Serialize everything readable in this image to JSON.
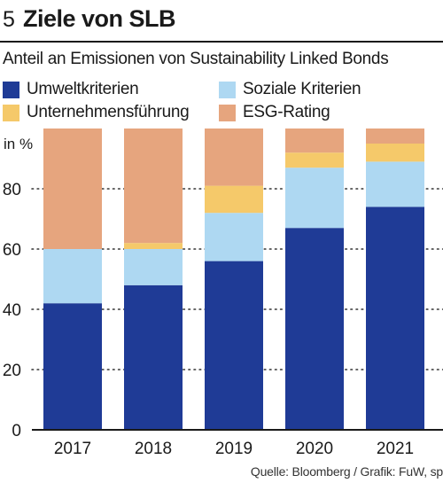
{
  "header": {
    "number": "5",
    "title": "Ziele von SLB"
  },
  "subtitle": "Anteil an Emissionen von Sustainability Linked Bonds",
  "source": "Quelle: Bloomberg / Grafik: FuW, sp",
  "legend": [
    {
      "label": "Umweltkriterien",
      "color": "#1f3b96"
    },
    {
      "label": "Soziale Kriterien",
      "color": "#aed8f2"
    },
    {
      "label": "Unternehmensführung",
      "color": "#f5c96a"
    },
    {
      "label": "ESG-Rating",
      "color": "#e6a57e"
    }
  ],
  "chart_data": {
    "type": "bar",
    "stacked": true,
    "categories": [
      "2017",
      "2018",
      "2019",
      "2020",
      "2021"
    ],
    "series": [
      {
        "name": "Umweltkriterien",
        "color": "#1f3b96",
        "values": [
          42,
          48,
          56,
          67,
          74
        ]
      },
      {
        "name": "Soziale Kriterien",
        "color": "#aed8f2",
        "values": [
          18,
          12,
          16,
          20,
          15
        ]
      },
      {
        "name": "Unternehmensführung",
        "color": "#f5c96a",
        "values": [
          0,
          2,
          9,
          5,
          6
        ]
      },
      {
        "name": "ESG-Rating",
        "color": "#e6a57e",
        "values": [
          40,
          38,
          19,
          8,
          5
        ]
      }
    ],
    "ylabel": "in %",
    "yticks": [
      0,
      20,
      40,
      60,
      80
    ],
    "ylim": [
      0,
      100
    ],
    "grid": "dotted"
  }
}
